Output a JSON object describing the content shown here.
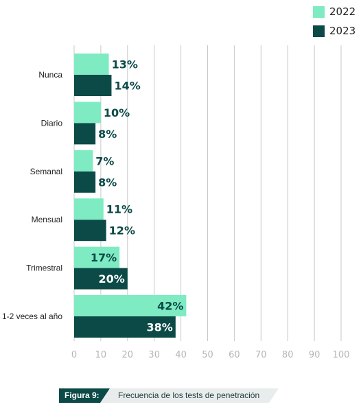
{
  "legend": [
    {
      "label": "2022",
      "color": "#7eebc2"
    },
    {
      "label": "2023",
      "color": "#0c4a47"
    }
  ],
  "caption": {
    "label": "Figura 9:",
    "text": "Frecuencia de los tests de penetración"
  },
  "chart_data": {
    "type": "bar",
    "orientation": "horizontal",
    "categories": [
      "Nunca",
      "Diario",
      "Semanal",
      "Mensual",
      "Trimestral",
      "1-2 veces al año"
    ],
    "series": [
      {
        "name": "2022",
        "color": "#7eebc2",
        "values": [
          13,
          10,
          7,
          11,
          17,
          42
        ],
        "labels": [
          "13%",
          "10%",
          "7%",
          "11%",
          "17%",
          "42%"
        ]
      },
      {
        "name": "2023",
        "color": "#0c4a47",
        "values": [
          14,
          8,
          8,
          12,
          20,
          38
        ],
        "labels": [
          "14%",
          "8%",
          "8%",
          "12%",
          "20%",
          "38%"
        ]
      }
    ],
    "xlim": [
      0,
      100
    ],
    "xticks": [
      "0",
      "10",
      "20",
      "30",
      "40",
      "50",
      "60",
      "70",
      "80",
      "90",
      "100"
    ],
    "grid": true,
    "legend_position": "top-right",
    "title": "",
    "xlabel": "",
    "ylabel": ""
  }
}
